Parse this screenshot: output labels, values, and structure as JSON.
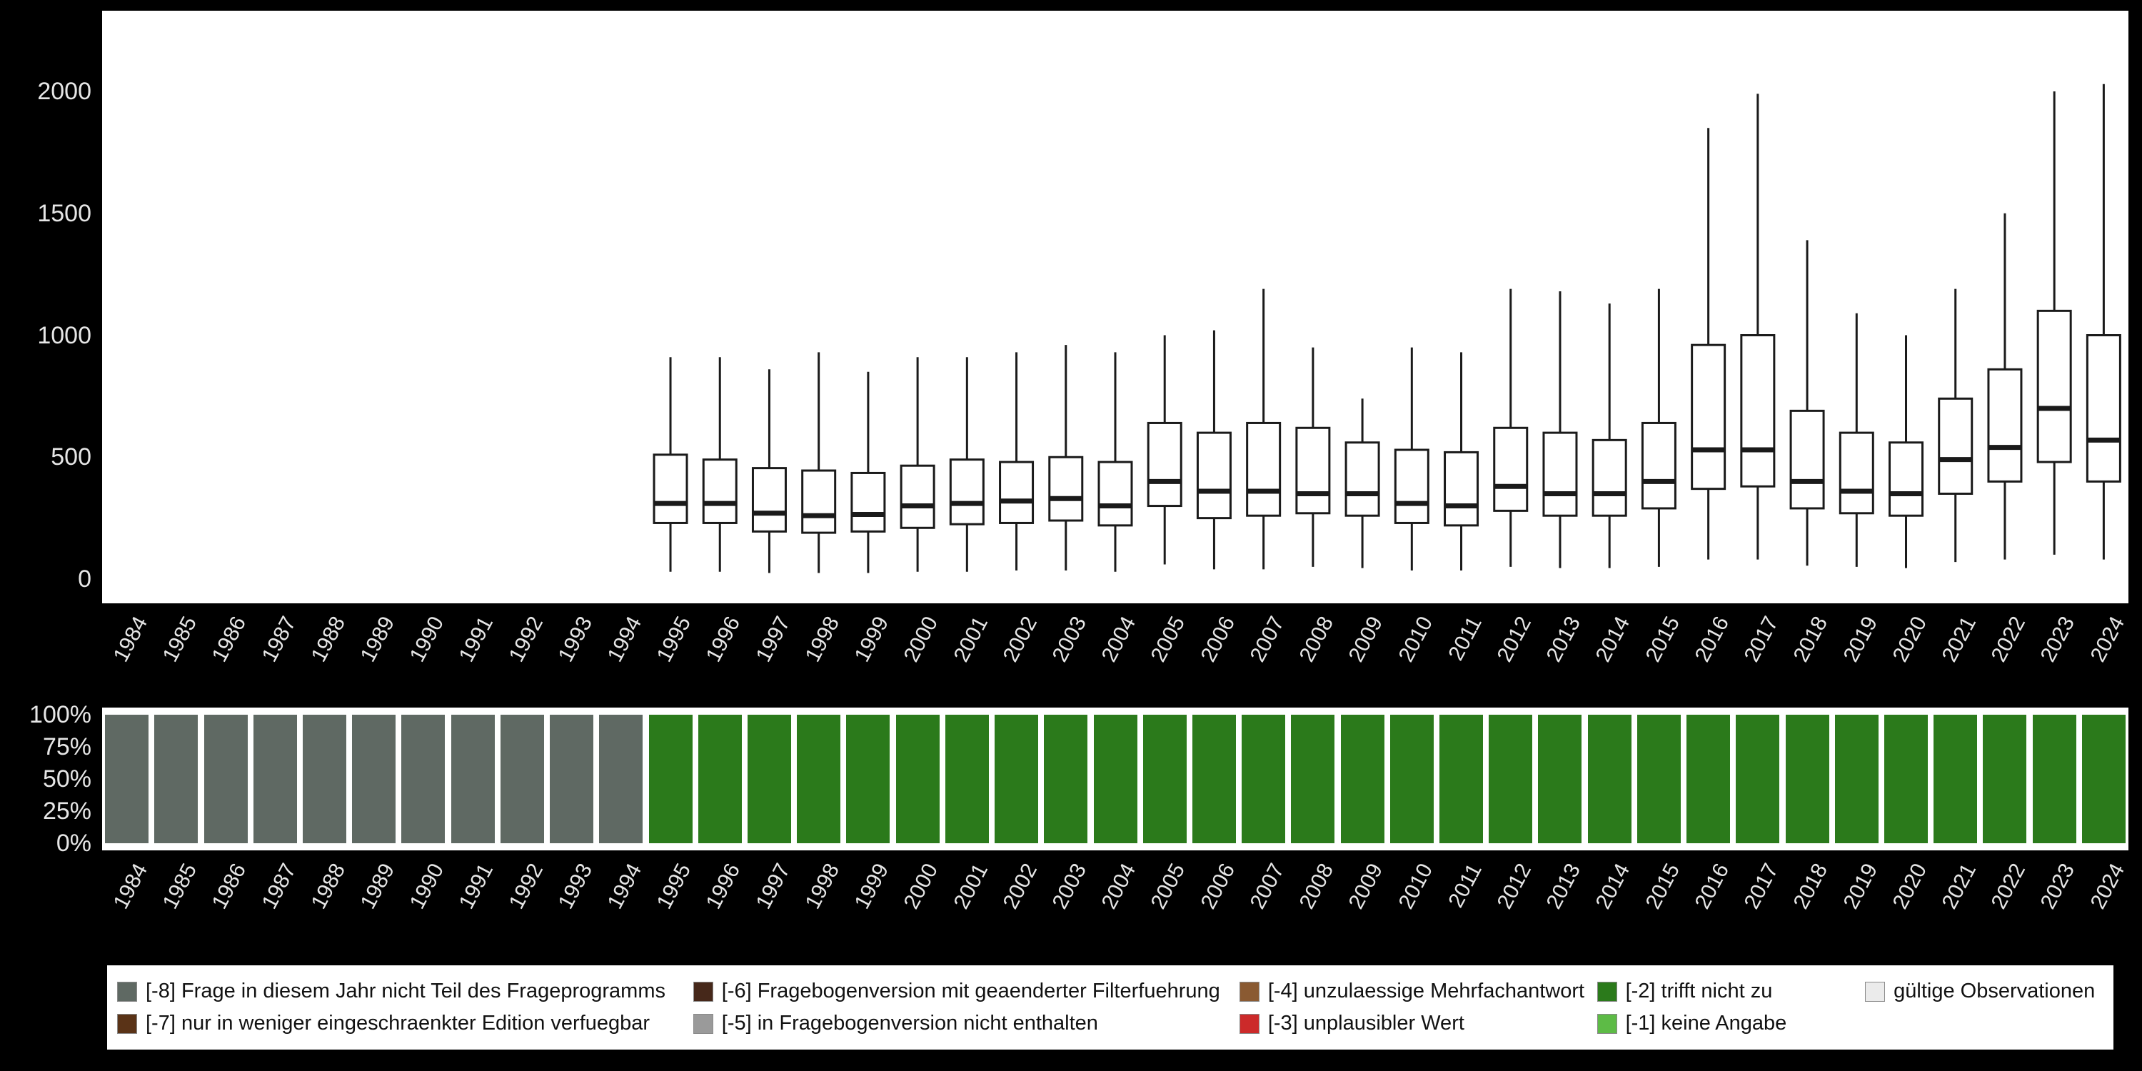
{
  "years": [
    "1984",
    "1985",
    "1986",
    "1987",
    "1988",
    "1989",
    "1990",
    "1991",
    "1992",
    "1993",
    "1994",
    "1995",
    "1996",
    "1997",
    "1998",
    "1999",
    "2000",
    "2001",
    "2002",
    "2003",
    "2004",
    "2005",
    "2006",
    "2007",
    "2008",
    "2009",
    "2010",
    "2011",
    "2012",
    "2013",
    "2014",
    "2015",
    "2016",
    "2017",
    "2018",
    "2019",
    "2020",
    "2021",
    "2022",
    "2023",
    "2024"
  ],
  "chart_data": [
    {
      "type": "boxplot",
      "title": "",
      "xlabel": "",
      "ylabel": "",
      "ylim": [
        0,
        2100
      ],
      "yticks": [
        0,
        500,
        1000,
        1500,
        2000
      ],
      "grid": false,
      "categories": [
        "1984",
        "1985",
        "1986",
        "1987",
        "1988",
        "1989",
        "1990",
        "1991",
        "1992",
        "1993",
        "1994",
        "1995",
        "1996",
        "1997",
        "1998",
        "1999",
        "2000",
        "2001",
        "2002",
        "2003",
        "2004",
        "2005",
        "2006",
        "2007",
        "2008",
        "2009",
        "2010",
        "2011",
        "2012",
        "2013",
        "2014",
        "2015",
        "2016",
        "2017",
        "2018",
        "2019",
        "2020",
        "2021",
        "2022",
        "2023",
        "2024"
      ],
      "boxes": [
        null,
        null,
        null,
        null,
        null,
        null,
        null,
        null,
        null,
        null,
        null,
        {
          "low": 30,
          "q1": 230,
          "median": 310,
          "q3": 510,
          "high": 910
        },
        {
          "low": 30,
          "q1": 230,
          "median": 310,
          "q3": 490,
          "high": 910
        },
        {
          "low": 25,
          "q1": 195,
          "median": 270,
          "q3": 455,
          "high": 860
        },
        {
          "low": 25,
          "q1": 190,
          "median": 260,
          "q3": 445,
          "high": 930
        },
        {
          "low": 25,
          "q1": 195,
          "median": 265,
          "q3": 435,
          "high": 850
        },
        {
          "low": 30,
          "q1": 210,
          "median": 300,
          "q3": 465,
          "high": 910
        },
        {
          "low": 30,
          "q1": 225,
          "median": 310,
          "q3": 490,
          "high": 910
        },
        {
          "low": 35,
          "q1": 230,
          "median": 320,
          "q3": 480,
          "high": 930
        },
        {
          "low": 35,
          "q1": 240,
          "median": 330,
          "q3": 500,
          "high": 960
        },
        {
          "low": 30,
          "q1": 220,
          "median": 300,
          "q3": 480,
          "high": 930
        },
        {
          "low": 60,
          "q1": 300,
          "median": 400,
          "q3": 640,
          "high": 1000
        },
        {
          "low": 40,
          "q1": 250,
          "median": 360,
          "q3": 600,
          "high": 1020
        },
        {
          "low": 40,
          "q1": 260,
          "median": 360,
          "q3": 640,
          "high": 1190
        },
        {
          "low": 50,
          "q1": 270,
          "median": 350,
          "q3": 620,
          "high": 950
        },
        {
          "low": 45,
          "q1": 260,
          "median": 350,
          "q3": 560,
          "high": 740
        },
        {
          "low": 35,
          "q1": 230,
          "median": 310,
          "q3": 530,
          "high": 950
        },
        {
          "low": 35,
          "q1": 220,
          "median": 300,
          "q3": 520,
          "high": 930
        },
        {
          "low": 50,
          "q1": 280,
          "median": 380,
          "q3": 620,
          "high": 1190
        },
        {
          "low": 45,
          "q1": 260,
          "median": 350,
          "q3": 600,
          "high": 1180
        },
        {
          "low": 45,
          "q1": 260,
          "median": 350,
          "q3": 570,
          "high": 1130
        },
        {
          "low": 50,
          "q1": 290,
          "median": 400,
          "q3": 640,
          "high": 1190
        },
        {
          "low": 80,
          "q1": 370,
          "median": 530,
          "q3": 960,
          "high": 1850
        },
        {
          "low": 80,
          "q1": 380,
          "median": 530,
          "q3": 1000,
          "high": 1990
        },
        {
          "low": 55,
          "q1": 290,
          "median": 400,
          "q3": 690,
          "high": 1390
        },
        {
          "low": 50,
          "q1": 270,
          "median": 360,
          "q3": 600,
          "high": 1090
        },
        {
          "low": 45,
          "q1": 260,
          "median": 350,
          "q3": 560,
          "high": 1000
        },
        {
          "low": 70,
          "q1": 350,
          "median": 490,
          "q3": 740,
          "high": 1190
        },
        {
          "low": 80,
          "q1": 400,
          "median": 540,
          "q3": 860,
          "high": 1500
        },
        {
          "low": 100,
          "q1": 480,
          "median": 700,
          "q3": 1100,
          "high": 2000
        },
        {
          "low": 80,
          "q1": 400,
          "median": 570,
          "q3": 1000,
          "high": 2030
        }
      ]
    },
    {
      "type": "bar",
      "stacked": true,
      "unit": "percent",
      "title": "",
      "xlabel": "",
      "ylabel": "",
      "ylim": [
        0,
        100
      ],
      "yticks": [
        "0%",
        "25%",
        "50%",
        "75%",
        "100%"
      ],
      "categories": [
        "1984",
        "1985",
        "1986",
        "1987",
        "1988",
        "1989",
        "1990",
        "1991",
        "1992",
        "1993",
        "1994",
        "1995",
        "1996",
        "1997",
        "1998",
        "1999",
        "2000",
        "2001",
        "2002",
        "2003",
        "2004",
        "2005",
        "2006",
        "2007",
        "2008",
        "2009",
        "2010",
        "2011",
        "2012",
        "2013",
        "2014",
        "2015",
        "2016",
        "2017",
        "2018",
        "2019",
        "2020",
        "2021",
        "2022",
        "2023",
        "2024"
      ],
      "series": [
        {
          "name": "[-8] Frage in diesem Jahr nicht Teil des Frageprogramms",
          "color": "#5f6963",
          "values": [
            100,
            100,
            100,
            100,
            100,
            100,
            100,
            100,
            100,
            100,
            100,
            0,
            0,
            0,
            0,
            0,
            0,
            0,
            0,
            0,
            0,
            0,
            0,
            0,
            0,
            0,
            0,
            0,
            0,
            0,
            0,
            0,
            0,
            0,
            0,
            0,
            0,
            0,
            0,
            0,
            0
          ]
        },
        {
          "name": "[-2] trifft nicht zu",
          "color": "#2b7a1b",
          "values": [
            0,
            0,
            0,
            0,
            0,
            0,
            0,
            0,
            0,
            0,
            0,
            100,
            100,
            100,
            100,
            100,
            100,
            100,
            100,
            100,
            100,
            100,
            100,
            100,
            100,
            100,
            100,
            100,
            100,
            100,
            100,
            100,
            100,
            100,
            100,
            100,
            100,
            100,
            100,
            100,
            100
          ]
        }
      ]
    }
  ],
  "legend": {
    "items": [
      {
        "code": "-8",
        "label": "[-8] Frage in diesem Jahr nicht Teil des Frageprogramms",
        "color": "#5f6963"
      },
      {
        "code": "-7",
        "label": "[-7] nur in weniger eingeschraenkter Edition verfuegbar",
        "color": "#5a3317"
      },
      {
        "code": "-6",
        "label": "[-6] Fragebogenversion mit geaenderter Filterfuehrung",
        "color": "#46281a"
      },
      {
        "code": "-5",
        "label": "[-5] in Fragebogenversion nicht enthalten",
        "color": "#9a9a9a"
      },
      {
        "code": "-4",
        "label": "[-4] unzulaessige Mehrfachantwort",
        "color": "#8a5a32"
      },
      {
        "code": "-3",
        "label": "[-3] unplausibler Wert",
        "color": "#cc2a2a"
      },
      {
        "code": "-2",
        "label": "[-2] trifft nicht zu",
        "color": "#2b7a1b"
      },
      {
        "code": "-1",
        "label": "[-1] keine Angabe",
        "color": "#5dbb46"
      },
      {
        "code": "valid",
        "label": "gültige Observationen",
        "color": "#ebebeb"
      }
    ]
  }
}
